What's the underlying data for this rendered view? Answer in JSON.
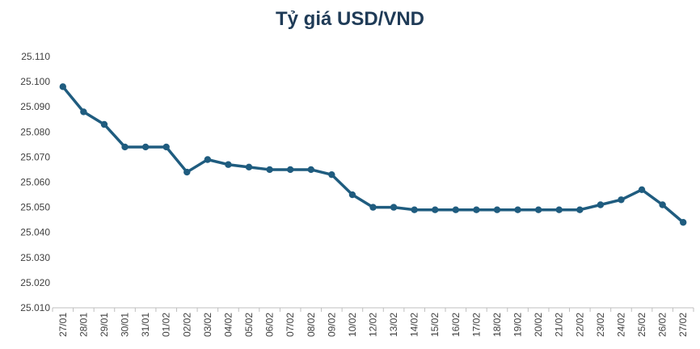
{
  "chart_data": {
    "type": "line",
    "title": "Tỷ giá USD/VND",
    "xlabel": "",
    "ylabel": "",
    "categories": [
      "27/01",
      "28/01",
      "29/01",
      "30/01",
      "31/01",
      "01/02",
      "02/02",
      "03/02",
      "04/02",
      "05/02",
      "06/02",
      "07/02",
      "08/02",
      "09/02",
      "10/02",
      "12/02",
      "13/02",
      "14/02",
      "15/02",
      "16/02",
      "17/02",
      "18/02",
      "19/02",
      "20/02",
      "21/02",
      "22/02",
      "23/02",
      "24/02",
      "25/02",
      "26/02",
      "27/02"
    ],
    "values": [
      25098,
      25088,
      25083,
      25074,
      25074,
      25074,
      25064,
      25069,
      25067,
      25066,
      25065,
      25065,
      25065,
      25063,
      25055,
      25050,
      25050,
      25049,
      25049,
      25049,
      25049,
      25049,
      25049,
      25049,
      25049,
      25049,
      25051,
      25053,
      25057,
      25051,
      25044
    ],
    "y_tick_labels": [
      "25.010",
      "25.020",
      "25.030",
      "25.040",
      "25.050",
      "25.060",
      "25.070",
      "25.080",
      "25.090",
      "25.100",
      "25.110"
    ],
    "ylim": [
      25010,
      25110
    ],
    "y_tick_step": 10,
    "grid": false,
    "line_color": "#1f5c7f",
    "axis_color": "#bfbfbf"
  }
}
